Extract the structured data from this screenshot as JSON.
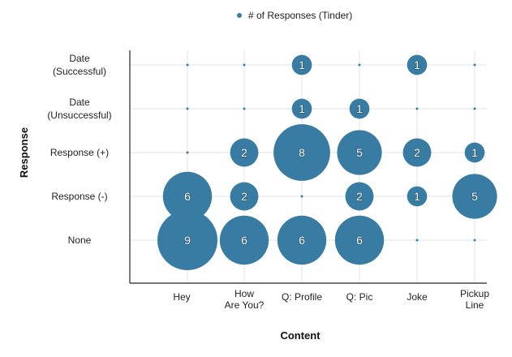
{
  "chart_data": {
    "type": "bubble",
    "title": "",
    "xlabel": "Content",
    "ylabel": "Response",
    "legend": {
      "label": "# of Responses (Tinder)",
      "position": "top-center"
    },
    "grid": true,
    "colors": {
      "bubble": "#387ba3",
      "grid": "#e3e3e3",
      "axis": "#222222",
      "label": "#ffffff"
    },
    "categories": [
      "Hey",
      "How Are You?",
      "Q: Profile",
      "Q: Pic",
      "Joke",
      "Pickup Line"
    ],
    "category_lines": [
      [
        "Hey"
      ],
      [
        "How",
        "Are You?"
      ],
      [
        "Q: Profile"
      ],
      [
        "Q: Pic"
      ],
      [
        "Joke"
      ],
      [
        "Pickup",
        "Line"
      ]
    ],
    "responses": [
      "None",
      "Response (-)",
      "Response (+)",
      "Date (Unsuccessful)",
      "Date (Successful)"
    ],
    "response_lines": [
      [
        "None"
      ],
      [
        "Response (-)"
      ],
      [
        "Response (+)"
      ],
      [
        "Date",
        "(Unsuccessful)"
      ],
      [
        "Date",
        "(Successful)"
      ]
    ],
    "series": [
      {
        "name": "# of Responses (Tinder)",
        "response": "Date (Successful)",
        "values": [
          0,
          0,
          1,
          0,
          1,
          0
        ]
      },
      {
        "name": "# of Responses (Tinder)",
        "response": "Date (Unsuccessful)",
        "values": [
          0,
          0,
          1,
          1,
          0,
          0
        ]
      },
      {
        "name": "# of Responses (Tinder)",
        "response": "Response (+)",
        "values": [
          0,
          2,
          8,
          5,
          2,
          1
        ]
      },
      {
        "name": "# of Responses (Tinder)",
        "response": "Response (-)",
        "values": [
          6,
          2,
          0,
          2,
          1,
          5
        ]
      },
      {
        "name": "# of Responses (Tinder)",
        "response": "None",
        "values": [
          9,
          6,
          6,
          6,
          0,
          0
        ]
      }
    ]
  }
}
